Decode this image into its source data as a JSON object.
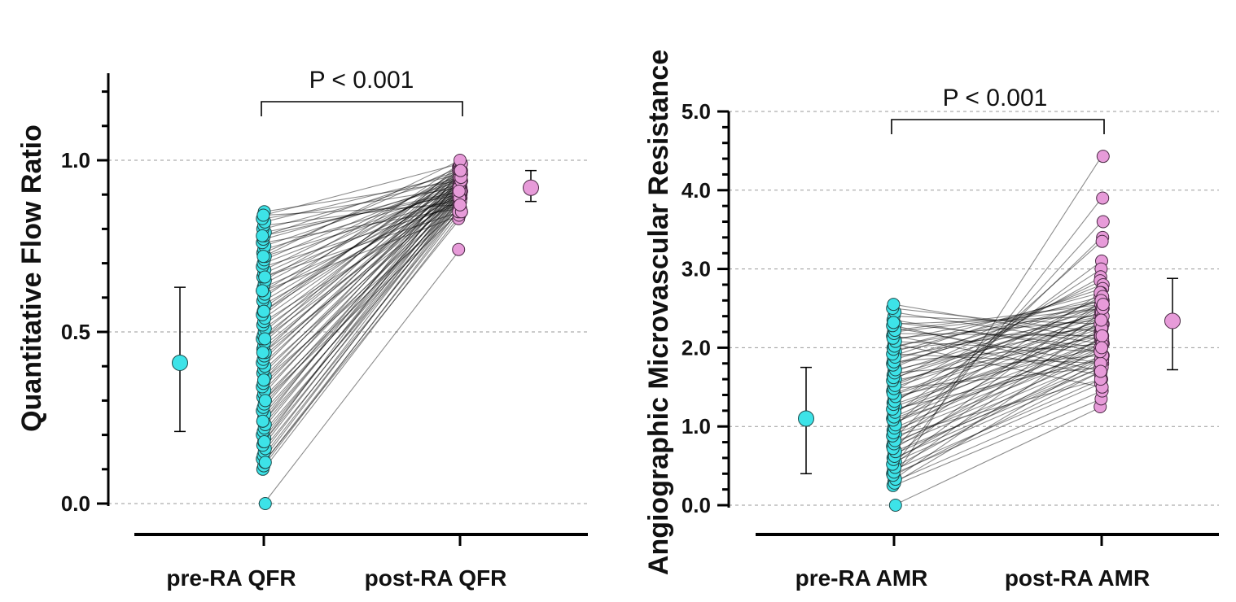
{
  "colors": {
    "pre": "#3de3e8",
    "post": "#e79bd9",
    "outline": "#1f4a4a",
    "line": "#000000"
  },
  "chart_data": [
    {
      "type": "scatter",
      "ylabel": "Quantitative Flow Ratio",
      "ylim": [
        0,
        1.25
      ],
      "yticks": [
        0.0,
        0.5,
        1.0
      ],
      "ytick_labels": [
        "0.0",
        "0.5",
        "1.0"
      ],
      "minor_tick_step": 0.1,
      "grid": "dashed at major ticks",
      "categories": [
        "pre-RA QFR",
        "post-RA QFR"
      ],
      "annotation": "P < 0.001",
      "summary": [
        {
          "name": "pre-RA QFR",
          "mean": 0.41,
          "low": 0.21,
          "high": 0.63
        },
        {
          "name": "post-RA QFR",
          "mean": 0.92,
          "low": 0.88,
          "high": 0.97
        }
      ],
      "pairs": [
        [
          0.0,
          0.74
        ],
        [
          0.1,
          0.84
        ],
        [
          0.11,
          0.86
        ],
        [
          0.12,
          0.85
        ],
        [
          0.13,
          0.88
        ],
        [
          0.14,
          0.87
        ],
        [
          0.15,
          0.89
        ],
        [
          0.16,
          0.86
        ],
        [
          0.17,
          0.9
        ],
        [
          0.18,
          0.88
        ],
        [
          0.19,
          0.91
        ],
        [
          0.2,
          0.89
        ],
        [
          0.21,
          0.87
        ],
        [
          0.22,
          0.92
        ],
        [
          0.23,
          0.9
        ],
        [
          0.24,
          0.88
        ],
        [
          0.25,
          0.93
        ],
        [
          0.26,
          0.91
        ],
        [
          0.27,
          0.89
        ],
        [
          0.28,
          0.94
        ],
        [
          0.29,
          0.9
        ],
        [
          0.3,
          0.92
        ],
        [
          0.31,
          0.88
        ],
        [
          0.32,
          0.95
        ],
        [
          0.33,
          0.91
        ],
        [
          0.34,
          0.93
        ],
        [
          0.35,
          0.89
        ],
        [
          0.36,
          0.96
        ],
        [
          0.37,
          0.92
        ],
        [
          0.38,
          0.94
        ],
        [
          0.39,
          0.9
        ],
        [
          0.4,
          0.97
        ],
        [
          0.41,
          0.93
        ],
        [
          0.42,
          0.95
        ],
        [
          0.43,
          0.91
        ],
        [
          0.44,
          0.98
        ],
        [
          0.45,
          0.94
        ],
        [
          0.46,
          0.92
        ],
        [
          0.47,
          0.96
        ],
        [
          0.48,
          0.9
        ],
        [
          0.49,
          0.93
        ],
        [
          0.5,
          0.97
        ],
        [
          0.51,
          0.91
        ],
        [
          0.52,
          0.95
        ],
        [
          0.53,
          0.89
        ],
        [
          0.54,
          0.94
        ],
        [
          0.55,
          0.98
        ],
        [
          0.56,
          0.92
        ],
        [
          0.57,
          0.96
        ],
        [
          0.58,
          0.9
        ],
        [
          0.59,
          0.93
        ],
        [
          0.6,
          0.99
        ],
        [
          0.61,
          0.91
        ],
        [
          0.62,
          0.95
        ],
        [
          0.63,
          0.88
        ],
        [
          0.64,
          0.94
        ],
        [
          0.65,
          0.97
        ],
        [
          0.66,
          0.9
        ],
        [
          0.67,
          0.93
        ],
        [
          0.68,
          0.96
        ],
        [
          0.69,
          0.87
        ],
        [
          0.7,
          0.92
        ],
        [
          0.71,
          0.95
        ],
        [
          0.72,
          0.89
        ],
        [
          0.73,
          0.98
        ],
        [
          0.74,
          0.91
        ],
        [
          0.75,
          0.94
        ],
        [
          0.76,
          0.86
        ],
        [
          0.77,
          0.93
        ],
        [
          0.78,
          0.97
        ],
        [
          0.79,
          0.9
        ],
        [
          0.8,
          0.95
        ],
        [
          0.81,
          0.88
        ],
        [
          0.82,
          0.96
        ],
        [
          0.83,
          0.92
        ],
        [
          0.84,
          0.99
        ],
        [
          0.85,
          0.94
        ],
        [
          0.12,
          0.83
        ],
        [
          0.24,
          0.97
        ],
        [
          0.36,
          0.86
        ],
        [
          0.48,
          0.99
        ],
        [
          0.62,
          0.84
        ],
        [
          0.72,
          1.0
        ],
        [
          0.18,
          0.95
        ],
        [
          0.3,
          0.85
        ],
        [
          0.44,
          0.89
        ],
        [
          0.56,
          0.97
        ],
        [
          0.66,
          0.85
        ],
        [
          0.78,
          0.91
        ],
        [
          0.84,
          0.87
        ]
      ]
    },
    {
      "type": "scatter",
      "ylabel": "Angiographic Microvascular Resistance",
      "ylim": [
        0,
        5.0
      ],
      "yticks": [
        0.0,
        1.0,
        2.0,
        3.0,
        4.0,
        5.0
      ],
      "ytick_labels": [
        "0.0",
        "1.0",
        "2.0",
        "3.0",
        "4.0",
        "5.0"
      ],
      "minor_tick_step": 0.2,
      "grid": "dashed at major ticks",
      "categories": [
        "pre-RA AMR",
        "post-RA AMR"
      ],
      "annotation": "P < 0.001",
      "summary": [
        {
          "name": "pre-RA AMR",
          "mean": 1.1,
          "low": 0.4,
          "high": 1.75
        },
        {
          "name": "post-RA AMR",
          "mean": 2.34,
          "low": 1.72,
          "high": 2.88
        }
      ],
      "pairs": [
        [
          0.0,
          1.25
        ],
        [
          0.25,
          1.35
        ],
        [
          0.3,
          1.45
        ],
        [
          0.35,
          4.43
        ],
        [
          0.4,
          1.55
        ],
        [
          0.45,
          1.6
        ],
        [
          0.5,
          3.9
        ],
        [
          0.55,
          1.7
        ],
        [
          0.6,
          1.75
        ],
        [
          0.65,
          1.8
        ],
        [
          0.7,
          3.6
        ],
        [
          0.75,
          1.85
        ],
        [
          0.8,
          1.9
        ],
        [
          0.85,
          3.4
        ],
        [
          0.9,
          1.95
        ],
        [
          0.95,
          2.0
        ],
        [
          1.0,
          3.35
        ],
        [
          1.05,
          2.05
        ],
        [
          1.1,
          2.1
        ],
        [
          1.15,
          3.1
        ],
        [
          1.2,
          2.15
        ],
        [
          1.25,
          2.2
        ],
        [
          1.3,
          3.0
        ],
        [
          1.35,
          2.25
        ],
        [
          1.4,
          2.3
        ],
        [
          1.45,
          2.9
        ],
        [
          1.5,
          2.35
        ],
        [
          1.55,
          2.4
        ],
        [
          1.6,
          2.85
        ],
        [
          1.65,
          2.45
        ],
        [
          1.7,
          2.5
        ],
        [
          1.75,
          2.8
        ],
        [
          1.8,
          2.55
        ],
        [
          1.85,
          2.6
        ],
        [
          1.9,
          2.75
        ],
        [
          1.95,
          2.65
        ],
        [
          2.0,
          2.7
        ],
        [
          2.05,
          1.5
        ],
        [
          2.1,
          2.6
        ],
        [
          2.15,
          1.65
        ],
        [
          2.2,
          2.5
        ],
        [
          2.25,
          1.8
        ],
        [
          2.3,
          2.4
        ],
        [
          2.35,
          1.95
        ],
        [
          2.4,
          2.3
        ],
        [
          2.45,
          2.05
        ],
        [
          2.5,
          2.2
        ],
        [
          2.55,
          2.1
        ],
        [
          0.28,
          1.85
        ],
        [
          0.33,
          2.15
        ],
        [
          0.38,
          1.7
        ],
        [
          0.42,
          2.35
        ],
        [
          0.48,
          1.9
        ],
        [
          0.52,
          2.45
        ],
        [
          0.58,
          2.0
        ],
        [
          0.62,
          2.6
        ],
        [
          0.68,
          1.75
        ],
        [
          0.72,
          2.25
        ],
        [
          0.78,
          2.05
        ],
        [
          0.82,
          2.55
        ],
        [
          0.88,
          1.6
        ],
        [
          0.92,
          2.4
        ],
        [
          0.98,
          2.1
        ],
        [
          1.02,
          2.7
        ],
        [
          1.08,
          1.95
        ],
        [
          1.12,
          2.3
        ],
        [
          1.18,
          2.5
        ],
        [
          1.22,
          1.85
        ],
        [
          1.28,
          2.2
        ],
        [
          1.32,
          2.65
        ],
        [
          1.38,
          2.0
        ],
        [
          1.42,
          2.35
        ],
        [
          1.48,
          1.75
        ],
        [
          1.52,
          2.55
        ],
        [
          1.58,
          2.15
        ],
        [
          1.62,
          2.45
        ],
        [
          1.68,
          1.9
        ],
        [
          1.72,
          2.3
        ],
        [
          1.78,
          2.6
        ],
        [
          1.82,
          2.05
        ],
        [
          1.88,
          2.4
        ],
        [
          1.92,
          1.8
        ],
        [
          1.98,
          2.25
        ],
        [
          2.02,
          2.5
        ],
        [
          2.08,
          1.95
        ],
        [
          2.12,
          2.35
        ],
        [
          2.18,
          2.15
        ],
        [
          2.22,
          2.55
        ],
        [
          2.28,
          1.7
        ],
        [
          2.32,
          2.0
        ]
      ]
    }
  ]
}
